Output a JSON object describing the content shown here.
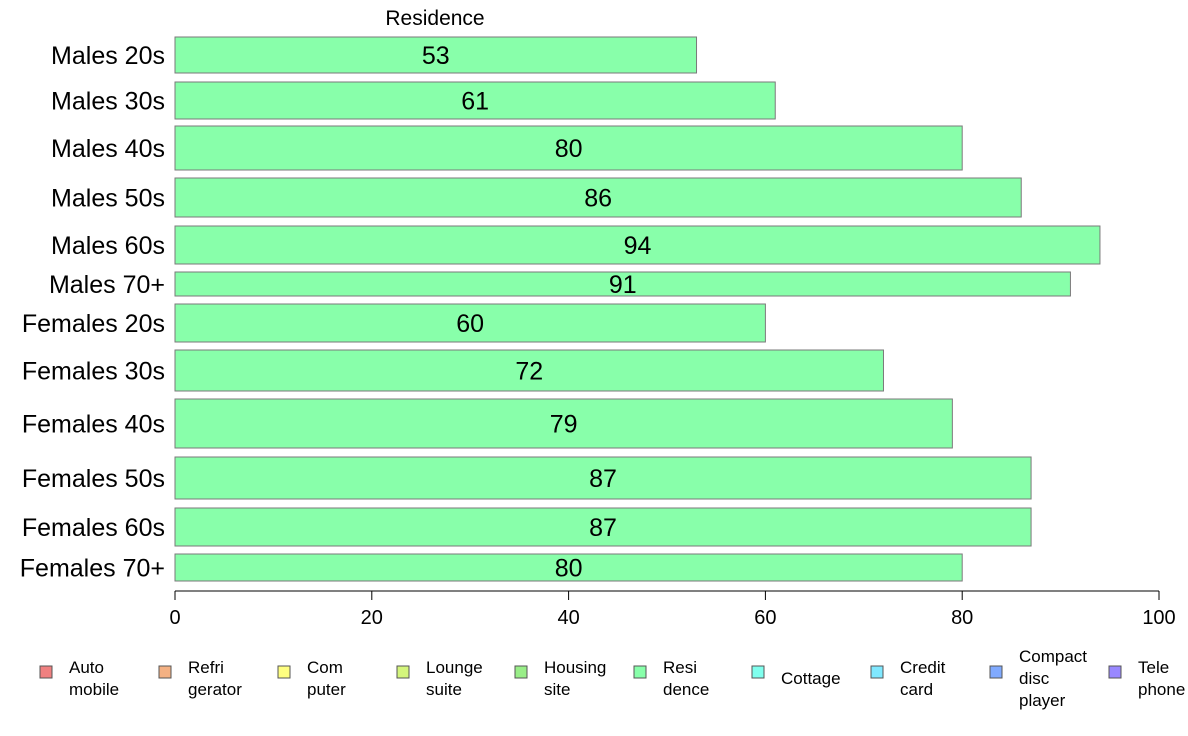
{
  "chart_data": {
    "type": "bar",
    "orientation": "horizontal",
    "panel_title": "Residence",
    "categories": [
      "Males 20s",
      "Males 30s",
      "Males 40s",
      "Males 50s",
      "Males 60s",
      "Males 70+",
      "Females 20s",
      "Females 30s",
      "Females 40s",
      "Females 50s",
      "Females 60s",
      "Females 70+"
    ],
    "values": [
      53,
      61,
      80,
      86,
      94,
      91,
      60,
      72,
      79,
      87,
      87,
      80
    ],
    "value_labels": [
      "53",
      "61",
      "80",
      "86",
      "94",
      "91",
      "60",
      "72",
      "79",
      "87",
      "87",
      "80"
    ],
    "bar_color": "#88ffaa",
    "xlim": [
      0,
      100
    ],
    "xticks": [
      "0",
      "20",
      "40",
      "60",
      "80",
      "100"
    ],
    "xtick_values": [
      0,
      20,
      40,
      60,
      80,
      100
    ],
    "grid": false,
    "legend_position": "bottom",
    "legend": [
      {
        "lines": [
          "Auto",
          "mobile"
        ],
        "color": "#f08080"
      },
      {
        "lines": [
          "Refri",
          "gerator"
        ],
        "color": "#f4b183"
      },
      {
        "lines": [
          "Com",
          "puter"
        ],
        "color": "#ffff80"
      },
      {
        "lines": [
          "Lounge",
          "suite"
        ],
        "color": "#d4f57c"
      },
      {
        "lines": [
          "Housing",
          "site"
        ],
        "color": "#99ee88"
      },
      {
        "lines": [
          "Resi",
          "dence"
        ],
        "color": "#88ffaa"
      },
      {
        "lines": [
          "Cottage"
        ],
        "color": "#80ffee"
      },
      {
        "lines": [
          "Credit",
          "card"
        ],
        "color": "#80e8ff"
      },
      {
        "lines": [
          "Compact",
          "disc",
          "player"
        ],
        "color": "#80aaff"
      },
      {
        "lines": [
          "Tele",
          "phone"
        ],
        "color": "#9988ff"
      }
    ]
  }
}
